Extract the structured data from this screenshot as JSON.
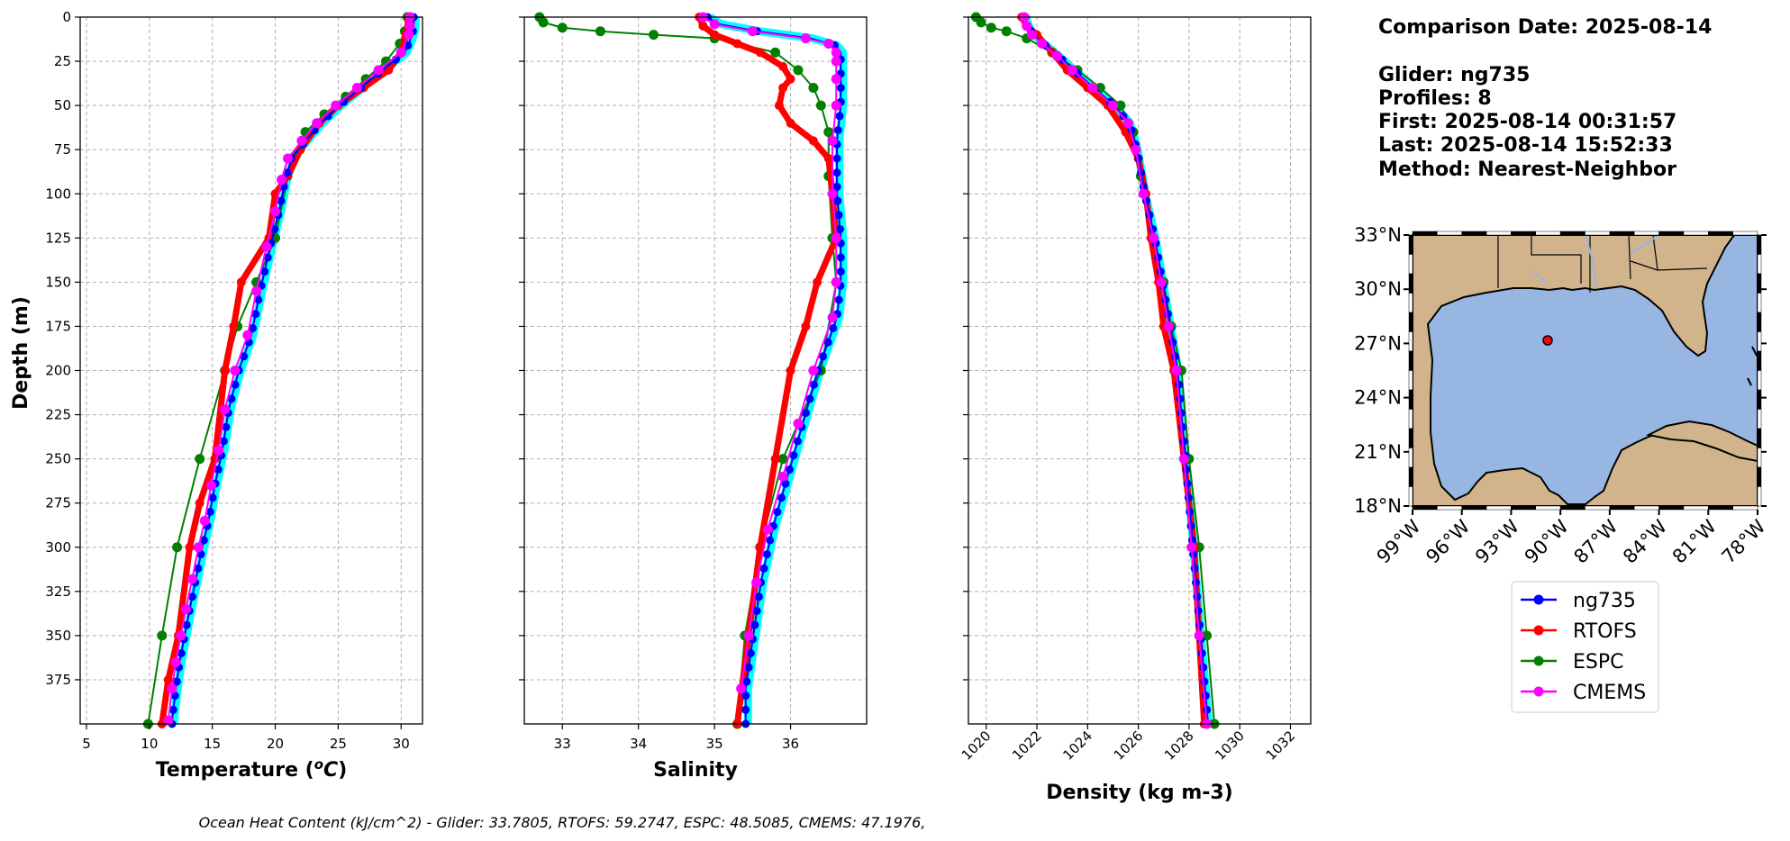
{
  "info": {
    "comparison_date": "Comparison Date: 2025-08-14",
    "glider": "Glider: ng735",
    "profiles": "Profiles: 8",
    "first": "First: 2025-08-14 00:31:57",
    "last": "Last: 2025-08-14 15:52:33",
    "method": "Method: Nearest-Neighbor"
  },
  "footer": "Ocean Heat Content (kJ/cm^2) - Glider: 33.7805,  RTOFS: 59.2747,  ESPC: 48.5085,  CMEMS: 47.1976,",
  "colors": {
    "ng735": "#0000ff",
    "glider_extra": "#00ffff",
    "RTOFS": "#ff0000",
    "ESPC": "#008000",
    "CMEMS": "#ff00ff",
    "land": "#d2b48c",
    "ocean": "#97b6e1"
  },
  "legend": [
    {
      "label": "ng735",
      "color": "#0000ff"
    },
    {
      "label": "RTOFS",
      "color": "#ff0000"
    },
    {
      "label": "ESPC",
      "color": "#008000"
    },
    {
      "label": "CMEMS",
      "color": "#ff00ff"
    }
  ],
  "map": {
    "lat_ticks": [
      "33°N",
      "30°N",
      "27°N",
      "24°N",
      "21°N",
      "18°N"
    ],
    "lon_ticks": [
      "99°W",
      "96°W",
      "93°W",
      "90°W",
      "87°W",
      "84°W",
      "81°W",
      "78°W"
    ],
    "lat_range": [
      18,
      33
    ],
    "lon_range": [
      -99,
      -78
    ],
    "glider_location": {
      "lon": -90.8,
      "lat": 27.4
    }
  },
  "chart_data": [
    {
      "type": "line",
      "xlabel": "Temperature (°C)",
      "ylabel": "Depth (m)",
      "xlim": [
        4.5,
        31.7
      ],
      "ylim": [
        400,
        0
      ],
      "xticks": [
        5,
        10,
        15,
        20,
        25,
        30
      ],
      "yticks": [
        0,
        25,
        50,
        75,
        100,
        125,
        150,
        175,
        200,
        225,
        250,
        275,
        300,
        325,
        350,
        375
      ],
      "grid": true,
      "series": [
        {
          "name": "CMEMS",
          "color": "#ff00ff",
          "x": [
            30.7,
            30.7,
            30.6,
            30.0,
            28.2,
            26.5,
            24.8,
            23.3,
            22.1,
            21.0,
            20.5,
            20.0,
            19.3,
            18.5,
            17.8,
            16.8,
            16.0,
            15.5,
            14.9,
            14.4,
            13.9,
            13.4,
            12.9,
            12.5,
            12.1,
            11.8,
            11.5
          ],
          "y": [
            0,
            5,
            10,
            20,
            30,
            40,
            50,
            60,
            70,
            80,
            92,
            110,
            130,
            155,
            180,
            200,
            222,
            245,
            265,
            285,
            300,
            318,
            335,
            350,
            365,
            380,
            398
          ]
        },
        {
          "name": "ESPC",
          "color": "#008000",
          "x": [
            30.5,
            30.3,
            29.9,
            28.8,
            27.2,
            25.6,
            23.9,
            22.4,
            21.3,
            20.0,
            18.5,
            17.0,
            16.0,
            14.0,
            12.2,
            11.0,
            9.9
          ],
          "y": [
            0,
            8,
            15,
            25,
            35,
            45,
            55,
            65,
            80,
            125,
            150,
            175,
            200,
            250,
            300,
            350,
            400
          ]
        },
        {
          "name": "RTOFS",
          "color": "#ff0000",
          "x": [
            30.6,
            30.4,
            30.0,
            29.0,
            27.0,
            25.0,
            23.5,
            22.0,
            21.0,
            20.0,
            19.5,
            17.3,
            16.7,
            16.0,
            15.2,
            14.0,
            13.2,
            12.3,
            11.5,
            11.0
          ],
          "y": [
            0,
            10,
            20,
            30,
            40,
            50,
            60,
            75,
            90,
            100,
            125,
            150,
            175,
            200,
            250,
            275,
            300,
            350,
            375,
            400
          ]
        }
      ]
    },
    {
      "type": "line",
      "xlabel": "Salinity",
      "xlim": [
        32.5,
        37.0
      ],
      "ylim": [
        400,
        0
      ],
      "xticks": [
        33,
        34,
        35,
        36
      ],
      "grid": true,
      "series": [
        {
          "name": "CMEMS",
          "color": "#ff00ff",
          "x": [
            34.85,
            35.0,
            35.5,
            36.2,
            36.5,
            36.6,
            36.6,
            36.6,
            36.6,
            36.55,
            36.55,
            36.6,
            36.6,
            36.55,
            36.3,
            36.1,
            35.9,
            35.7,
            35.55,
            35.45,
            35.35
          ],
          "y": [
            0,
            4,
            8,
            12,
            15,
            20,
            25,
            35,
            50,
            70,
            100,
            125,
            150,
            170,
            200,
            230,
            260,
            290,
            320,
            350,
            380
          ]
        },
        {
          "name": "ESPC",
          "color": "#008000",
          "x": [
            32.7,
            32.75,
            33.0,
            33.5,
            34.2,
            35.0,
            35.8,
            36.1,
            36.3,
            36.4,
            36.5,
            36.5,
            36.55,
            36.6,
            36.4,
            35.9,
            35.6,
            35.4,
            35.3
          ],
          "y": [
            0,
            3,
            6,
            8,
            10,
            12,
            20,
            30,
            40,
            50,
            65,
            90,
            125,
            150,
            200,
            250,
            300,
            350,
            400
          ]
        },
        {
          "name": "RTOFS",
          "color": "#ff0000",
          "x": [
            34.8,
            34.85,
            35.0,
            35.3,
            35.6,
            35.9,
            36.0,
            35.9,
            35.85,
            36.0,
            36.3,
            36.5,
            36.55,
            36.6,
            36.35,
            36.2,
            36.0,
            35.8,
            35.6,
            35.45,
            35.3
          ],
          "y": [
            0,
            5,
            10,
            15,
            20,
            28,
            35,
            40,
            50,
            60,
            70,
            80,
            100,
            125,
            150,
            175,
            200,
            250,
            300,
            350,
            400
          ]
        }
      ]
    },
    {
      "type": "line",
      "xlabel": "Density (kg m-3)",
      "xlim": [
        1019.3,
        1032.8
      ],
      "ylim": [
        400,
        0
      ],
      "xticks": [
        1020,
        1022,
        1024,
        1026,
        1028,
        1030,
        1032
      ],
      "grid": true,
      "series": [
        {
          "name": "CMEMS",
          "color": "#ff00ff",
          "x": [
            1021.5,
            1021.6,
            1021.8,
            1022.2,
            1022.8,
            1023.4,
            1024.2,
            1025.0,
            1025.6,
            1025.9,
            1026.2,
            1026.6,
            1026.9,
            1027.2,
            1027.5,
            1027.8,
            1028.1,
            1028.4,
            1028.7
          ],
          "y": [
            0,
            5,
            10,
            15,
            22,
            30,
            40,
            50,
            60,
            75,
            100,
            125,
            150,
            175,
            200,
            250,
            300,
            350,
            400
          ]
        },
        {
          "name": "ESPC",
          "color": "#008000",
          "x": [
            1019.6,
            1019.8,
            1020.2,
            1020.8,
            1021.6,
            1022.6,
            1023.6,
            1024.5,
            1025.3,
            1025.8,
            1026.1,
            1026.6,
            1027.0,
            1027.3,
            1027.7,
            1028.0,
            1028.4,
            1028.7,
            1029.0
          ],
          "y": [
            0,
            3,
            6,
            8,
            12,
            20,
            30,
            40,
            50,
            65,
            90,
            125,
            150,
            175,
            200,
            250,
            300,
            350,
            400
          ]
        },
        {
          "name": "RTOFS",
          "color": "#ff0000",
          "x": [
            1021.4,
            1021.6,
            1022.0,
            1022.6,
            1023.2,
            1024.0,
            1024.8,
            1025.5,
            1026.0,
            1026.3,
            1026.5,
            1026.8,
            1027.0,
            1027.4,
            1027.8,
            1028.2,
            1028.6
          ],
          "y": [
            0,
            5,
            10,
            20,
            30,
            40,
            50,
            65,
            80,
            100,
            125,
            150,
            175,
            200,
            250,
            300,
            400
          ]
        }
      ]
    }
  ]
}
